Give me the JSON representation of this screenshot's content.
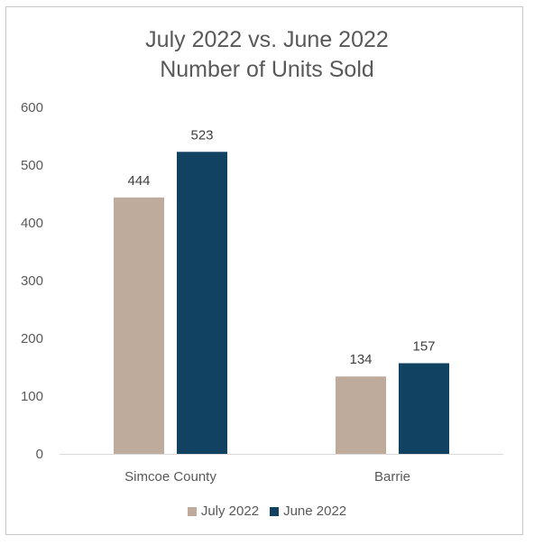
{
  "chart_data": {
    "type": "bar",
    "title_lines": [
      "July 2022 vs. June 2022",
      "Number of Units Sold"
    ],
    "categories": [
      "Simcoe County",
      "Barrie"
    ],
    "series": [
      {
        "name": "July 2022",
        "values": [
          444,
          134
        ],
        "color": "#bfab9c"
      },
      {
        "name": "June 2022",
        "values": [
          523,
          157
        ],
        "color": "#124262"
      }
    ],
    "ylim": [
      0,
      600
    ],
    "yticks": [
      0,
      100,
      200,
      300,
      400,
      500,
      600
    ],
    "grid": false,
    "legend_position": "bottom",
    "data_labels": true
  }
}
